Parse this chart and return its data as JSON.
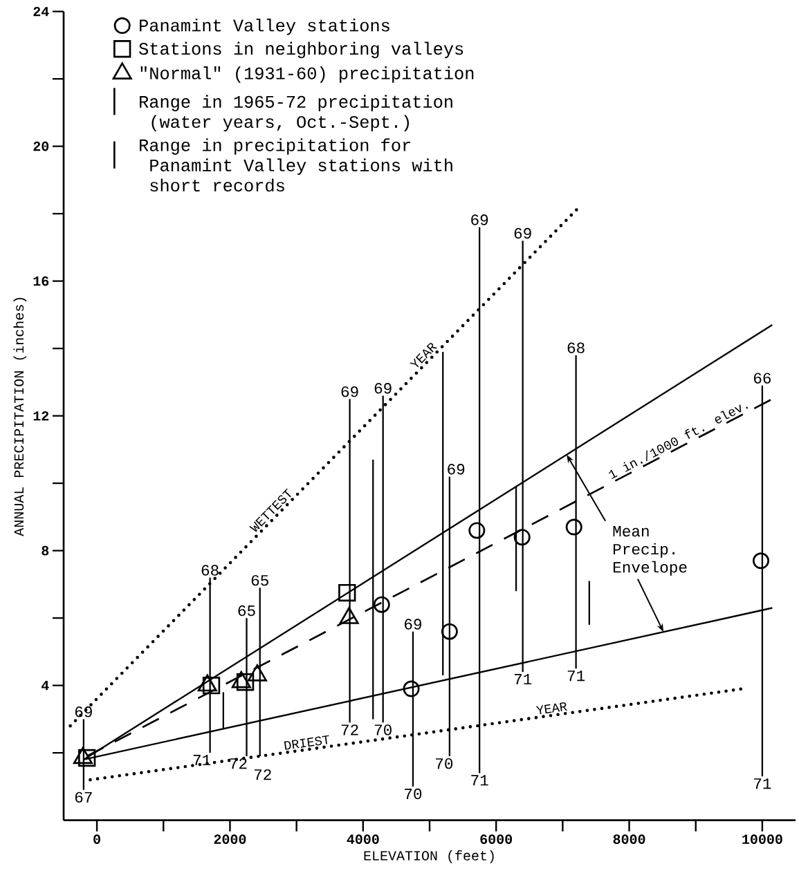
{
  "chart_data": {
    "type": "scatter",
    "xlabel": "ELEVATION (feet)",
    "ylabel": "ANNUAL PRECIPITATION (inches)",
    "xlim": [
      -500,
      10500
    ],
    "ylim": [
      0,
      24
    ],
    "xticks": [
      0,
      {
        "value": 1000,
        "label": null
      },
      2000,
      {
        "value": 3000,
        "label": null
      },
      4000,
      {
        "value": 5000,
        "label": null
      },
      6000,
      {
        "value": 7000,
        "label": null
      },
      8000,
      {
        "value": 9000,
        "label": null
      },
      10000
    ],
    "yticks": [
      {
        "value": 2,
        "label": null
      },
      4,
      {
        "value": 6,
        "label": null
      },
      8,
      {
        "value": 10,
        "label": null
      },
      12,
      {
        "value": 14,
        "label": null
      },
      16,
      {
        "value": 18,
        "label": null
      },
      20,
      {
        "value": 22,
        "label": null
      },
      24
    ],
    "legend": "top left",
    "series": [
      {
        "name": "Panamint Valley stations",
        "marker": "circle",
        "color": "#000000",
        "x": [
          4280,
          4725,
          5300,
          5710,
          6390,
          7170,
          9980
        ],
        "values": [
          6.4,
          3.9,
          5.6,
          8.6,
          8.4,
          8.7,
          7.7
        ]
      },
      {
        "name": "Stations in neighboring valleys",
        "marker": "square",
        "color": "#000000",
        "x": [
          -150,
          1720,
          2230,
          3760
        ],
        "values": [
          1.85,
          4.0,
          4.1,
          6.75
        ]
      },
      {
        "name": "\"Normal\" (1931-60) precipitation",
        "marker": "triangle",
        "color": "#000000",
        "x": [
          -210,
          1660,
          2170,
          2410,
          3790
        ],
        "values": [
          1.85,
          4.0,
          4.1,
          4.3,
          6.0
        ]
      },
      {
        "name": "Range in 1965-72 precipitation (water years, Oct.-Sept.)",
        "type": "bar",
        "color": "#000000",
        "x": [
          -200,
          1700,
          2250,
          2450,
          3800,
          4300,
          4750,
          5300,
          5750,
          6400,
          7200,
          10000
        ],
        "base": [
          0.9,
          2.0,
          1.9,
          1.9,
          2.9,
          2.9,
          1.0,
          1.9,
          1.4,
          4.4,
          4.5,
          1.3
        ],
        "values": [
          2.1,
          5.2,
          4.1,
          5.0,
          9.6,
          9.7,
          4.6,
          8.3,
          16.2,
          12.8,
          9.3,
          11.6
        ]
      },
      {
        "name": "Range in precipitation for Panamint Valley stations with short records",
        "type": "bar",
        "color": "#000000",
        "x": [
          1900,
          4150,
          5200,
          6300,
          7400
        ],
        "base": [
          2.7,
          3.0,
          4.3,
          6.8,
          5.8
        ],
        "values": [
          1.1,
          7.7,
          9.6,
          3.1,
          1.3
        ]
      },
      {
        "type": "line",
        "line_style": "solid",
        "color": "#000000",
        "x": [
          -200,
          10150
        ],
        "values": [
          1.8,
          14.7
        ]
      },
      {
        "type": "line",
        "line_style": "solid",
        "color": "#000000",
        "x": [
          -200,
          10150
        ],
        "values": [
          1.8,
          6.3
        ]
      },
      {
        "type": "line",
        "line_style": "dashed",
        "color": "#000000",
        "x": [
          -150,
          10150
        ],
        "values": [
          1.9,
          12.5
        ]
      },
      {
        "type": "line",
        "line_style": "dotted",
        "color": "#000000",
        "x": [
          -400,
          7250
        ],
        "values": [
          2.8,
          18.2
        ]
      },
      {
        "type": "line",
        "line_style": "dotted",
        "color": "#000000",
        "x": [
          -100,
          9700
        ],
        "values": [
          1.2,
          3.9
        ]
      }
    ],
    "annotations": [
      {
        "text": "WETTEST",
        "x": 2700,
        "y": 9.04
      },
      {
        "text": "YEAR",
        "x": 4985,
        "y": 13.64
      },
      {
        "text": "DRIEST",
        "x": 3170,
        "y": 2.09
      },
      {
        "text": "YEAR",
        "x": 6850,
        "y": 3.11
      },
      {
        "text": "1 in./1000 ft. elev.",
        "x": 8800,
        "y": 11.11
      },
      {
        "text": "Mean Precip. Envelope",
        "x": 7060,
        "y": 10.85
      },
      {
        "text": "69",
        "x": -200,
        "y": 3.0
      },
      {
        "text": "67",
        "x": -200,
        "y": 0.9
      },
      {
        "text": "68",
        "x": 1700,
        "y": 7.2
      },
      {
        "text": "71",
        "x": 1700,
        "y": 2.0
      },
      {
        "text": "65",
        "x": 2250,
        "y": 6.0
      },
      {
        "text": "72",
        "x": 2250,
        "y": 1.9
      },
      {
        "text": "65",
        "x": 2450,
        "y": 6.9
      },
      {
        "text": "72",
        "x": 2450,
        "y": 1.9
      },
      {
        "text": "69",
        "x": 3800,
        "y": 12.5
      },
      {
        "text": "72",
        "x": 3800,
        "y": 2.9
      },
      {
        "text": "69",
        "x": 4300,
        "y": 12.6
      },
      {
        "text": "70",
        "x": 4300,
        "y": 2.9
      },
      {
        "text": "69",
        "x": 4750,
        "y": 5.6
      },
      {
        "text": "70",
        "x": 4750,
        "y": 1.0
      },
      {
        "text": "69",
        "x": 5300,
        "y": 10.2
      },
      {
        "text": "70",
        "x": 5300,
        "y": 1.9
      },
      {
        "text": "69",
        "x": 5750,
        "y": 17.6
      },
      {
        "text": "71",
        "x": 5750,
        "y": 1.4
      },
      {
        "text": "69",
        "x": 6400,
        "y": 17.2
      },
      {
        "text": "71",
        "x": 6400,
        "y": 4.4
      },
      {
        "text": "68",
        "x": 7200,
        "y": 13.8
      },
      {
        "text": "71",
        "x": 7200,
        "y": 4.5
      },
      {
        "text": "66",
        "x": 10000,
        "y": 12.9
      },
      {
        "text": "71",
        "x": 10000,
        "y": 1.3
      }
    ]
  }
}
